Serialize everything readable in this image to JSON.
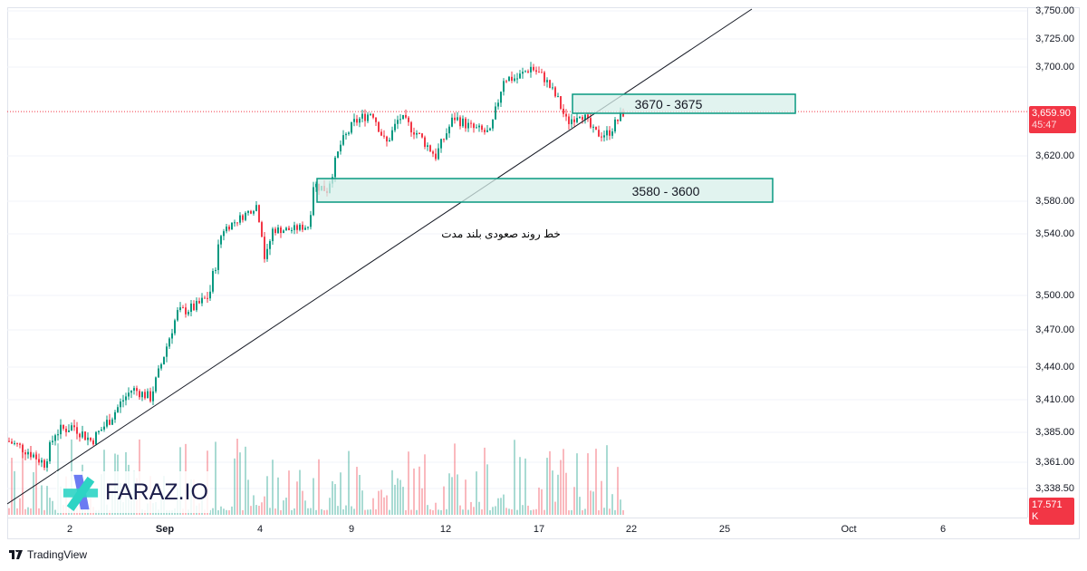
{
  "chart": {
    "y_ticks": [
      {
        "label": "3,750.00",
        "v": 3750,
        "py": 12
      },
      {
        "label": "3,725.00",
        "v": 3725,
        "py": 43
      },
      {
        "label": "3,700.00",
        "v": 3700,
        "py": 74
      },
      {
        "label": "3,620.00",
        "v": 3620,
        "py": 172
      },
      {
        "label": "3,580.00",
        "v": 3580,
        "py": 222
      },
      {
        "label": "3,540.00",
        "v": 3540,
        "py": 258
      },
      {
        "label": "3,500.00",
        "v": 3500,
        "py": 326
      },
      {
        "label": "3,470.00",
        "v": 3470,
        "py": 364
      },
      {
        "label": "3,440.00",
        "v": 3440,
        "py": 405
      },
      {
        "label": "3,410.00",
        "v": 3410,
        "py": 441
      },
      {
        "label": "3,385.00",
        "v": 3385,
        "py": 477
      },
      {
        "label": "3,361.00",
        "v": 3361,
        "py": 510
      },
      {
        "label": "3,338.50",
        "v": 3338.5,
        "py": 539
      }
    ],
    "x_ticks": [
      "2",
      "Sep",
      "4",
      "9",
      "12",
      "17",
      "22",
      "25",
      "Oct",
      "6"
    ],
    "last_price": "3,659.90",
    "countdown": "45:47",
    "volume_badge": "17.571 K",
    "zones": [
      {
        "label": "3670 - 3675",
        "low": 3670,
        "high": 3675
      },
      {
        "label": "3580 - 3600",
        "low": 3580,
        "high": 3600
      }
    ],
    "trendline_label": "خط روند صعودی بلند مدت",
    "colors": {
      "up": "#089981",
      "down": "#f23645",
      "zone_fill": "#d7efea",
      "zone_border": "#089981"
    }
  },
  "watermark": "FARAZ.IO",
  "footer": "TradingView"
}
